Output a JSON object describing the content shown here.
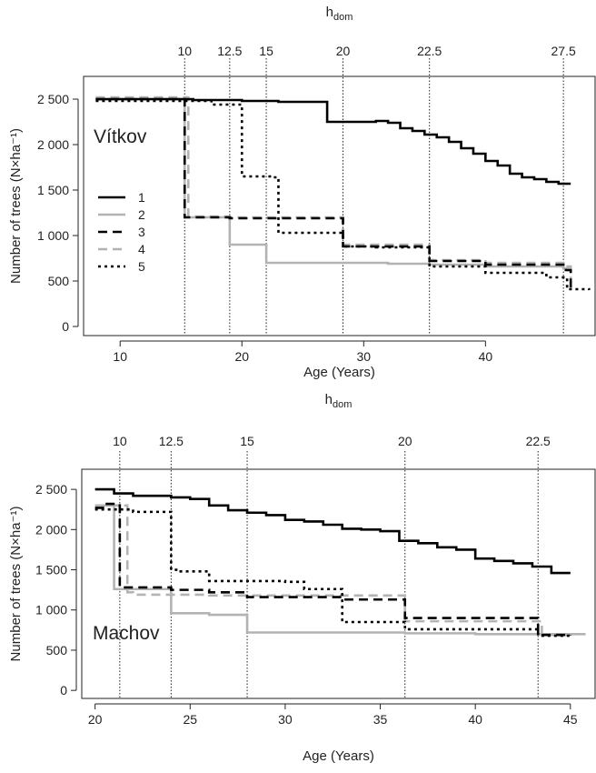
{
  "chart_data": [
    {
      "type": "line",
      "step": true,
      "panel_label": "Vítkov",
      "xlabel": "Age (Years)",
      "ylabel": "Number of trees (N×ha⁻¹)",
      "top_axis_label": "h",
      "top_axis_label_sub": "dom",
      "xlim": [
        7,
        49
      ],
      "ylim": [
        -100,
        2750
      ],
      "x_ticks": [
        10,
        20,
        30,
        40
      ],
      "y_ticks": [
        0,
        500,
        1000,
        1500,
        2000,
        2500
      ],
      "y_tick_labels": [
        "0",
        "500",
        "1 000",
        "1 500",
        "2 000",
        "2 500"
      ],
      "hdom_markers": [
        {
          "age": 15.3,
          "label": "10"
        },
        {
          "age": 19.0,
          "label": "12.5"
        },
        {
          "age": 22.0,
          "label": "15"
        },
        {
          "age": 28.3,
          "label": "20"
        },
        {
          "age": 35.4,
          "label": "22.5"
        },
        {
          "age": 46.4,
          "label": "27.5"
        }
      ],
      "legend": {
        "position": "left",
        "entries": [
          "1",
          "2",
          "3",
          "4",
          "5"
        ]
      },
      "series": [
        {
          "name": "1",
          "style": "solid",
          "color": "#000000",
          "x": [
            8,
            16,
            20,
            23,
            27,
            30,
            31,
            32,
            33,
            34,
            35,
            36,
            37,
            38,
            39,
            40,
            41,
            42,
            43,
            44,
            45,
            46,
            47
          ],
          "y": [
            2500,
            2490,
            2480,
            2470,
            2250,
            2250,
            2260,
            2240,
            2180,
            2150,
            2110,
            2080,
            2030,
            1960,
            1900,
            1820,
            1770,
            1680,
            1640,
            1620,
            1590,
            1570,
            1570
          ]
        },
        {
          "name": "2",
          "style": "solid",
          "color": "#b3b3b3",
          "x": [
            8,
            15.3,
            19,
            22,
            32,
            35.4,
            40,
            46.4,
            47
          ],
          "y": [
            2500,
            1200,
            900,
            700,
            690,
            680,
            660,
            640,
            640
          ]
        },
        {
          "name": "3",
          "style": "dashed",
          "color": "#000000",
          "x": [
            8,
            15.3,
            19,
            28.3,
            35.4,
            40,
            46.6,
            47
          ],
          "y": [
            2500,
            1200,
            1190,
            880,
            720,
            680,
            620,
            400
          ]
        },
        {
          "name": "4",
          "style": "dashed",
          "color": "#b3b3b3",
          "x": [
            8,
            15.6,
            19,
            28.3,
            35.4,
            40,
            46.6,
            47
          ],
          "y": [
            2520,
            1210,
            1200,
            900,
            730,
            700,
            660,
            400
          ]
        },
        {
          "name": "5",
          "style": "dotted",
          "color": "#000000",
          "x": [
            8,
            17.5,
            20,
            22.5,
            23,
            28.3,
            31,
            35.4,
            40,
            45,
            46.7,
            48.5
          ],
          "y": [
            2480,
            2440,
            1650,
            1640,
            1030,
            880,
            870,
            660,
            590,
            540,
            410,
            400
          ]
        }
      ]
    },
    {
      "type": "line",
      "step": true,
      "panel_label": "Machov",
      "xlabel": "Age (Years)",
      "ylabel": "Number of trees (N×ha⁻¹)",
      "top_axis_label": "h",
      "top_axis_label_sub": "dom",
      "xlim": [
        19.3,
        46.3
      ],
      "ylim": [
        -100,
        2750
      ],
      "x_ticks": [
        20,
        25,
        30,
        35,
        40,
        45
      ],
      "y_ticks": [
        0,
        500,
        1000,
        1500,
        2000,
        2500
      ],
      "y_tick_labels": [
        "0",
        "500",
        "1 000",
        "1 500",
        "2 000",
        "2 500"
      ],
      "hdom_markers": [
        {
          "age": 21.3,
          "label": "10"
        },
        {
          "age": 24.0,
          "label": "12.5"
        },
        {
          "age": 28.0,
          "label": "15"
        },
        {
          "age": 36.3,
          "label": "20"
        },
        {
          "age": 43.3,
          "label": "22.5"
        }
      ],
      "legend": null,
      "series": [
        {
          "name": "1",
          "style": "solid",
          "color": "#000000",
          "x": [
            20,
            21,
            22,
            24,
            25,
            26,
            27,
            28,
            29,
            30,
            31,
            32,
            33,
            34,
            35,
            36,
            37,
            38,
            39,
            40,
            41,
            42,
            43,
            44,
            45
          ],
          "y": [
            2500,
            2450,
            2420,
            2400,
            2380,
            2300,
            2240,
            2210,
            2180,
            2120,
            2100,
            2060,
            2010,
            2000,
            1980,
            1860,
            1830,
            1780,
            1750,
            1640,
            1610,
            1580,
            1540,
            1460,
            1460
          ]
        },
        {
          "name": "2",
          "style": "solid",
          "color": "#b3b3b3",
          "x": [
            20,
            21.0,
            24,
            26,
            28,
            36.3,
            40,
            45.8
          ],
          "y": [
            2300,
            1260,
            960,
            940,
            720,
            710,
            700,
            700
          ]
        },
        {
          "name": "3",
          "style": "dashed",
          "color": "#000000",
          "x": [
            20,
            20.5,
            21.3,
            24,
            26,
            28,
            33,
            36.3,
            43.3,
            45
          ],
          "y": [
            2270,
            2320,
            1280,
            1250,
            1220,
            1160,
            1130,
            900,
            690,
            680
          ]
        },
        {
          "name": "4",
          "style": "dashed",
          "color": "#b3b3b3",
          "x": [
            20,
            21.7,
            22,
            24,
            26,
            28,
            36.3,
            43.5,
            45
          ],
          "y": [
            2300,
            1220,
            1190,
            1190,
            1180,
            1180,
            860,
            690,
            680
          ]
        },
        {
          "name": "5",
          "style": "dotted",
          "color": "#000000",
          "x": [
            20,
            21.0,
            22.0,
            24,
            24.5,
            26,
            30,
            31,
            33,
            36.3,
            43.3,
            45
          ],
          "y": [
            2250,
            2250,
            2220,
            1500,
            1480,
            1360,
            1350,
            1260,
            850,
            760,
            680,
            680
          ]
        }
      ]
    }
  ]
}
